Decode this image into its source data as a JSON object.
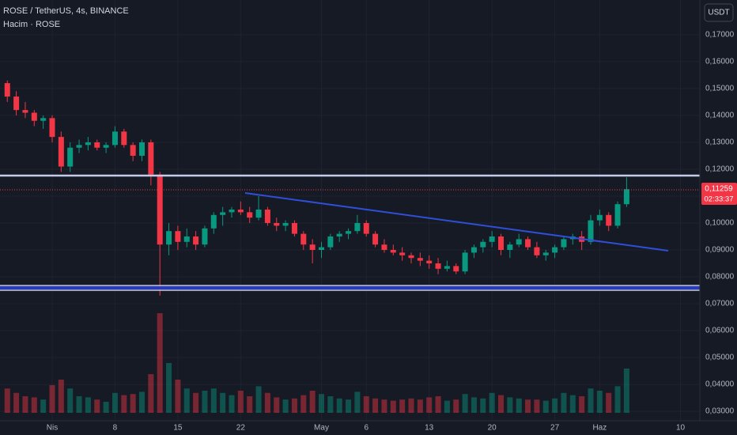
{
  "chart_data": {
    "type": "candlestick",
    "title": "ROSE / TetherUS, 4s, BINANCE",
    "subtitle": "Hacim · ROSE",
    "currency_button": "USDT",
    "last_price_label": "0,11259",
    "countdown": "02:33:37",
    "up_color": "#089981",
    "down_color": "#f23645",
    "categories": [
      null,
      null,
      null,
      null,
      null,
      "Nis",
      null,
      null,
      null,
      null,
      null,
      null,
      "8",
      null,
      null,
      null,
      null,
      null,
      null,
      "15",
      null,
      null,
      null,
      null,
      null,
      null,
      "22",
      null,
      null,
      null,
      null,
      null,
      null,
      null,
      null,
      "May",
      null,
      null,
      null,
      null,
      "6",
      null,
      null,
      null,
      null,
      null,
      null,
      "13",
      null,
      null,
      null,
      null,
      null,
      null,
      "20",
      null,
      null,
      null,
      null,
      null,
      null,
      "27",
      null,
      null,
      null,
      null,
      "Haz",
      null,
      null,
      null,
      null,
      null,
      null,
      null,
      null,
      "10"
    ],
    "open": [
      0.152,
      0.147,
      0.142,
      0.141,
      0.138,
      0.139,
      0.132,
      0.121,
      0.128,
      0.129,
      0.13,
      0.128,
      0.129,
      0.134,
      0.129,
      0.125,
      0.13,
      0.118,
      0.092,
      0.097,
      0.093,
      0.095,
      0.092,
      0.098,
      0.103,
      0.104,
      0.105,
      0.104,
      0.102,
      0.105,
      0.1,
      0.099,
      0.1,
      0.096,
      0.092,
      0.09,
      0.091,
      0.095,
      0.096,
      0.097,
      0.1,
      0.096,
      0.092,
      0.09,
      0.089,
      0.088,
      0.087,
      0.086,
      0.085,
      0.083,
      0.084,
      0.082,
      0.089,
      0.091,
      0.093,
      0.095,
      0.09,
      0.092,
      0.094,
      0.091,
      0.088,
      0.089,
      0.091,
      0.094,
      0.095,
      0.093,
      0.101,
      0.103,
      0.099,
      0.107,
      null,
      null,
      null,
      null,
      null,
      null
    ],
    "high": [
      0.153,
      0.149,
      0.145,
      0.142,
      0.14,
      0.14,
      0.134,
      0.13,
      0.131,
      0.132,
      0.131,
      0.13,
      0.136,
      0.135,
      0.13,
      0.131,
      0.131,
      0.119,
      0.1,
      0.099,
      0.098,
      0.097,
      0.099,
      0.104,
      0.106,
      0.106,
      0.108,
      0.106,
      0.11,
      0.106,
      0.102,
      0.101,
      0.101,
      0.097,
      0.094,
      0.093,
      0.096,
      0.097,
      0.098,
      0.103,
      0.101,
      0.097,
      0.094,
      0.092,
      0.091,
      0.089,
      0.089,
      0.088,
      0.087,
      0.086,
      0.085,
      0.09,
      0.092,
      0.094,
      0.097,
      0.096,
      0.093,
      0.096,
      0.095,
      0.093,
      0.09,
      0.092,
      0.095,
      0.096,
      0.097,
      0.103,
      0.105,
      0.104,
      0.108,
      0.117,
      null,
      null,
      null,
      null,
      null,
      null
    ],
    "low": [
      0.145,
      0.14,
      0.139,
      0.136,
      0.135,
      0.13,
      0.119,
      0.119,
      0.126,
      0.127,
      0.127,
      0.126,
      0.128,
      0.128,
      0.123,
      0.123,
      0.114,
      0.073,
      0.088,
      0.09,
      0.091,
      0.09,
      0.091,
      0.096,
      0.099,
      0.102,
      0.103,
      0.1,
      0.101,
      0.099,
      0.097,
      0.097,
      0.095,
      0.09,
      0.085,
      0.087,
      0.09,
      0.093,
      0.094,
      0.096,
      0.095,
      0.091,
      0.089,
      0.088,
      0.086,
      0.085,
      0.084,
      0.083,
      0.081,
      0.082,
      0.081,
      0.081,
      0.087,
      0.089,
      0.091,
      0.088,
      0.087,
      0.091,
      0.09,
      0.087,
      0.086,
      0.087,
      0.09,
      0.092,
      0.09,
      0.092,
      0.099,
      0.097,
      0.098,
      0.106,
      null,
      null,
      null,
      null,
      null,
      null
    ],
    "close": [
      0.147,
      0.142,
      0.141,
      0.138,
      0.139,
      0.132,
      0.121,
      0.128,
      0.129,
      0.13,
      0.128,
      0.129,
      0.134,
      0.129,
      0.125,
      0.13,
      0.118,
      0.092,
      0.097,
      0.093,
      0.095,
      0.092,
      0.098,
      0.103,
      0.104,
      0.105,
      0.104,
      0.102,
      0.105,
      0.1,
      0.099,
      0.1,
      0.096,
      0.092,
      0.09,
      0.091,
      0.095,
      0.096,
      0.097,
      0.1,
      0.096,
      0.092,
      0.09,
      0.089,
      0.088,
      0.087,
      0.086,
      0.085,
      0.083,
      0.084,
      0.082,
      0.089,
      0.091,
      0.093,
      0.095,
      0.09,
      0.092,
      0.094,
      0.091,
      0.088,
      0.089,
      0.091,
      0.094,
      0.095,
      0.093,
      0.101,
      0.103,
      0.099,
      0.107,
      0.11259,
      null,
      null,
      null,
      null,
      null,
      null
    ],
    "volume": [
      22,
      18,
      15,
      14,
      12,
      25,
      30,
      22,
      15,
      14,
      12,
      10,
      18,
      16,
      17,
      19,
      35,
      90,
      45,
      30,
      22,
      18,
      20,
      22,
      18,
      16,
      20,
      15,
      24,
      18,
      14,
      12,
      13,
      16,
      20,
      17,
      15,
      13,
      12,
      19,
      15,
      13,
      12,
      11,
      12,
      13,
      12,
      14,
      15,
      11,
      12,
      17,
      14,
      13,
      18,
      16,
      14,
      13,
      12,
      12,
      11,
      13,
      18,
      16,
      15,
      22,
      20,
      18,
      24,
      40,
      null,
      null,
      null,
      null,
      null,
      null
    ],
    "ylim": [
      0.0265,
      0.1829
    ],
    "yticks": [
      {
        "value": 0.17,
        "label": "0,17000"
      },
      {
        "value": 0.16,
        "label": "0,16000"
      },
      {
        "value": 0.15,
        "label": "0,15000"
      },
      {
        "value": 0.14,
        "label": "0,14000"
      },
      {
        "value": 0.13,
        "label": "0,13000"
      },
      {
        "value": 0.12,
        "label": "0,12000"
      },
      {
        "value": 0.11,
        "label": "0,11000"
      },
      {
        "value": 0.1,
        "label": "0,10000"
      },
      {
        "value": 0.09,
        "label": "0,09000"
      },
      {
        "value": 0.08,
        "label": "0,08000"
      },
      {
        "value": 0.07,
        "label": "0,07000"
      },
      {
        "value": 0.06,
        "label": "0,06000"
      },
      {
        "value": 0.05,
        "label": "0,05000"
      },
      {
        "value": 0.04,
        "label": "0,04000"
      },
      {
        "value": 0.03,
        "label": "0,03000"
      }
    ],
    "grid": true
  }
}
